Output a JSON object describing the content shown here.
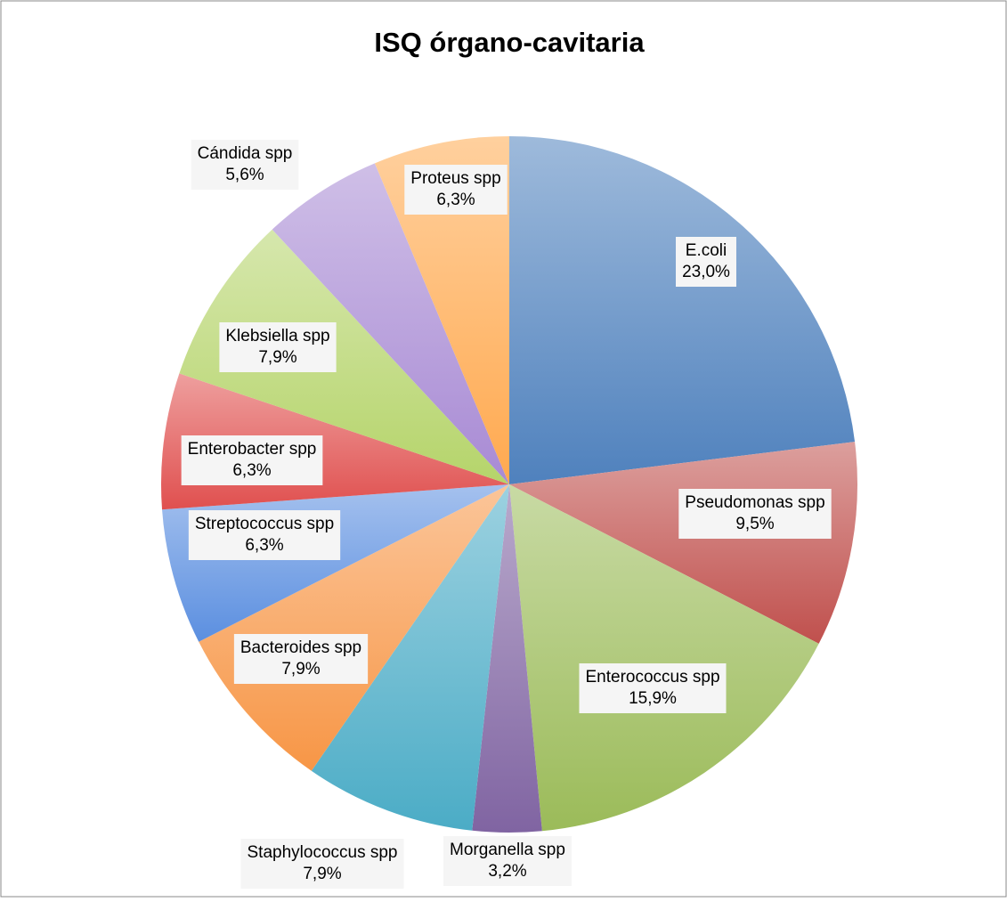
{
  "chart_data": {
    "type": "pie",
    "title": "ISQ órgano-cavitaria",
    "categories": [
      "E.coli",
      "Pseudomonas spp",
      "Enterococcus spp",
      "Morganella spp",
      "Staphylococcus spp",
      "Bacteroides spp",
      "Streptococcus spp",
      "Enterobacter spp",
      "Klebsiella spp",
      "Cándida spp",
      "Proteus spp"
    ],
    "values": [
      23.0,
      9.5,
      15.9,
      3.2,
      7.9,
      7.9,
      6.3,
      6.3,
      7.9,
      5.6,
      6.3
    ],
    "value_labels": [
      "23,0%",
      "9,5%",
      "15,9%",
      "3,2%",
      "7,9%",
      "7,9%",
      "6,3%",
      "6,3%",
      "7,9%",
      "5,6%",
      "6,3%"
    ],
    "colors": [
      "#4f81bd",
      "#c0504d",
      "#9bbb59",
      "#8064a2",
      "#4bacc6",
      "#f79646",
      "#5b8fe0",
      "#e0504f",
      "#b5d46a",
      "#a88ad4",
      "#ffa94f"
    ]
  }
}
